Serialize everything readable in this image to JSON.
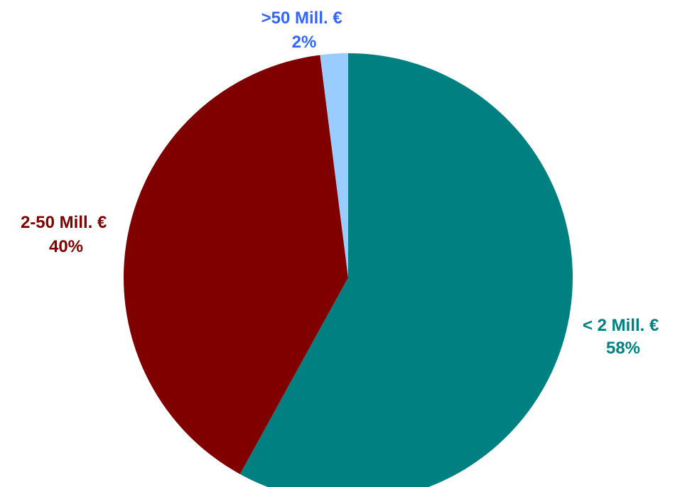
{
  "chart_data": {
    "type": "pie",
    "categories": [
      "< 2 Mill. €",
      "2-50 Mill. €",
      ">50 Mill. €"
    ],
    "values": [
      58,
      40,
      2
    ],
    "value_labels": [
      "58%",
      "40%",
      "2%"
    ],
    "colors": [
      "#008080",
      "#800000",
      "#99ccff"
    ],
    "label_colors": [
      "#008080",
      "#800000",
      "#3366ff"
    ],
    "legend": "none"
  }
}
